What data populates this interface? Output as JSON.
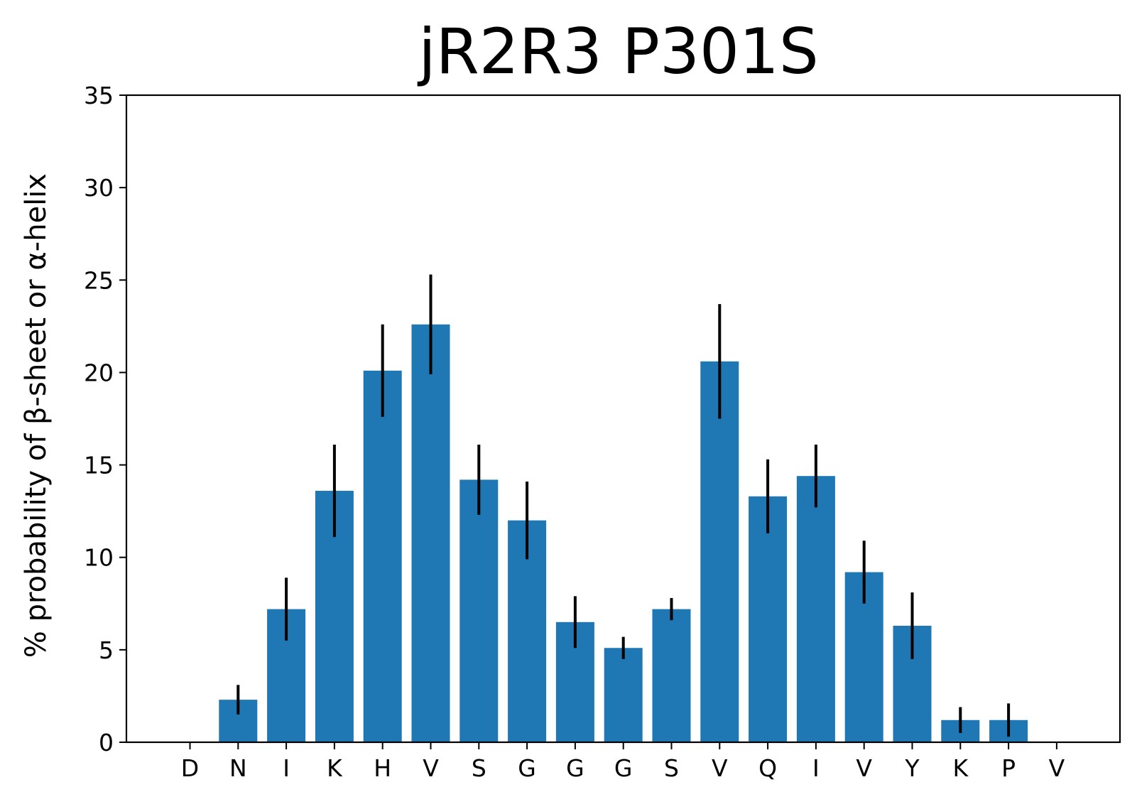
{
  "chart_data": {
    "type": "bar",
    "title": "jR2R3 P301S",
    "xlabel": "",
    "ylabel": "% probability of β-sheet or α-helix",
    "categories": [
      "D",
      "N",
      "I",
      "K",
      "H",
      "V",
      "S",
      "G",
      "G",
      "G",
      "S",
      "V",
      "Q",
      "I",
      "V",
      "Y",
      "K",
      "P",
      "V"
    ],
    "values": [
      0,
      2.3,
      7.2,
      13.6,
      20.1,
      22.6,
      14.2,
      12.0,
      6.5,
      5.1,
      7.2,
      20.6,
      13.3,
      14.4,
      9.2,
      6.3,
      1.2,
      1.2,
      0
    ],
    "errors": [
      0,
      0.8,
      1.7,
      2.5,
      2.5,
      2.7,
      1.9,
      2.1,
      1.4,
      0.6,
      0.6,
      3.1,
      2.0,
      1.7,
      1.7,
      1.8,
      0.7,
      0.9,
      0
    ],
    "ylim": [
      0,
      35
    ],
    "yticks": [
      0,
      5,
      10,
      15,
      20,
      25,
      30,
      35
    ],
    "bar_color": "#1f77b4",
    "error_color": "#000000",
    "grid": false,
    "legend": "none"
  }
}
